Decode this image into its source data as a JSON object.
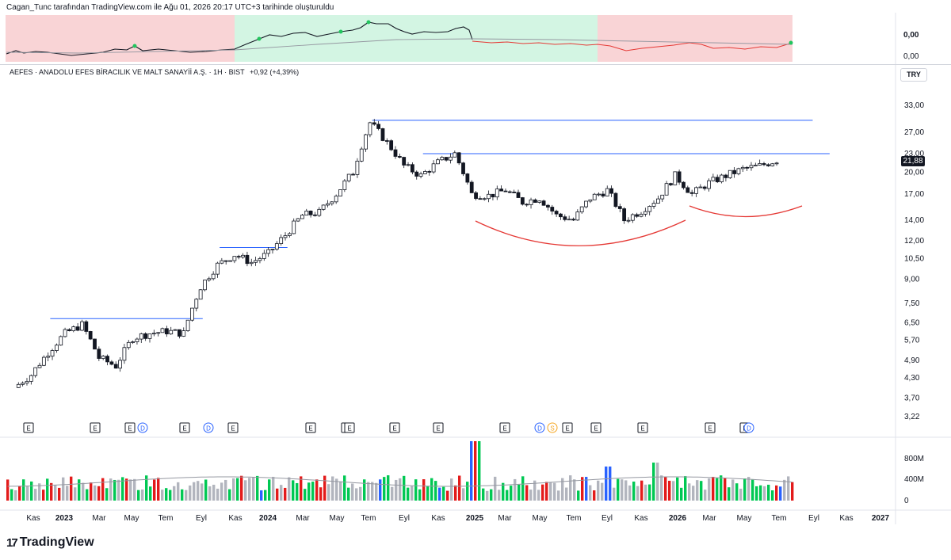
{
  "header": {
    "note": "Cagan_Tunc tarafından TradingView.com ile Ağu 01, 2026 20:17 UTC+3 tarihinde oluşturuldu"
  },
  "legend": {
    "symbol": "AEFES · ANADOLU EFES BİRACILIK VE MALT SANAYİİ A.Ş. · 1H · BIST",
    "change": "+0,92 (+4,39%)"
  },
  "currency": "TRY",
  "last_price": "21,88",
  "brand": {
    "name": "TradingView",
    "mark": "17"
  },
  "colors": {
    "up": "#22ab3f",
    "down": "#131722",
    "vol_up": "#00c853",
    "vol_down": "#e31b1b",
    "vol_blue": "#2962ff",
    "vol_grey": "#b2b5be",
    "trend": "#2962ff",
    "arc": "#e53935",
    "zone_red": "#f9d4d6",
    "zone_green": "#d3f5e3"
  },
  "top_panel": {
    "ticks": [
      "0,00",
      "0,00"
    ]
  },
  "events": [
    "E",
    "E",
    "E",
    "D",
    "E",
    "D",
    "E",
    "E",
    "E",
    "E",
    "E",
    "E",
    "E",
    "D",
    "S",
    "E",
    "E",
    "E",
    "E",
    "E",
    "D"
  ],
  "chart_data": {
    "type": "candlestick",
    "title": "AEFES · ANADOLU EFES BİRACILIK VE MALT SANAYİİ A.Ş. · 1H · BIST",
    "scale": "log",
    "y_ticks": [
      "33,00",
      "27,00",
      "23,00",
      "20,00",
      "17,00",
      "14,00",
      "12,00",
      "10,50",
      "9,00",
      "7,50",
      "6,50",
      "5,70",
      "4,90",
      "4,30",
      "3,70",
      "3,22"
    ],
    "y_tick_values": [
      33.0,
      27.0,
      23.0,
      20.0,
      17.0,
      14.0,
      12.0,
      10.5,
      9.0,
      7.5,
      6.5,
      5.7,
      4.9,
      4.3,
      3.7,
      3.22
    ],
    "x_ticks": [
      "Kas",
      "2023",
      "Mar",
      "May",
      "Tem",
      "Eyl",
      "Kas",
      "2024",
      "Mar",
      "May",
      "Tem",
      "Eyl",
      "Kas",
      "2025",
      "Mar",
      "May",
      "Tem",
      "Eyl",
      "Kas",
      "2026",
      "Mar",
      "May",
      "Tem",
      "Eyl",
      "Kas",
      "2027"
    ],
    "x_ticks_bold": [
      "2023",
      "2024",
      "2025",
      "2026",
      "2027"
    ],
    "volume_ticks": [
      "800M",
      "400M",
      "0"
    ],
    "close_path": [
      {
        "t": "2022-10",
        "c": 4.0
      },
      {
        "t": "2022-11",
        "c": 4.4
      },
      {
        "t": "2022-12",
        "c": 5.2
      },
      {
        "t": "2023-01",
        "c": 6.0
      },
      {
        "t": "2023-02",
        "c": 6.4
      },
      {
        "t": "2023-03",
        "c": 5.0
      },
      {
        "t": "2023-04",
        "c": 4.7
      },
      {
        "t": "2023-05",
        "c": 5.8
      },
      {
        "t": "2023-06",
        "c": 6.0
      },
      {
        "t": "2023-07",
        "c": 6.1
      },
      {
        "t": "2023-08",
        "c": 6.0
      },
      {
        "t": "2023-09",
        "c": 8.5
      },
      {
        "t": "2023-10",
        "c": 10.0
      },
      {
        "t": "2023-11",
        "c": 10.8
      },
      {
        "t": "2023-12",
        "c": 10.2
      },
      {
        "t": "2024-01",
        "c": 10.9
      },
      {
        "t": "2024-02",
        "c": 12.5
      },
      {
        "t": "2024-03",
        "c": 14.5
      },
      {
        "t": "2024-04",
        "c": 14.8
      },
      {
        "t": "2024-05",
        "c": 17.0
      },
      {
        "t": "2024-06",
        "c": 20.0
      },
      {
        "t": "2024-07",
        "c": 29.0
      },
      {
        "t": "2024-08",
        "c": 25.0
      },
      {
        "t": "2024-09",
        "c": 21.0
      },
      {
        "t": "2024-10",
        "c": 19.5
      },
      {
        "t": "2024-11",
        "c": 21.5
      },
      {
        "t": "2024-12",
        "c": 23.0
      },
      {
        "t": "2025-01",
        "c": 17.0
      },
      {
        "t": "2025-02",
        "c": 16.8
      },
      {
        "t": "2025-03",
        "c": 17.5
      },
      {
        "t": "2025-04",
        "c": 16.0
      },
      {
        "t": "2025-05",
        "c": 16.5
      },
      {
        "t": "2025-06",
        "c": 14.5
      },
      {
        "t": "2025-07",
        "c": 14.0
      },
      {
        "t": "2025-08",
        "c": 16.5
      },
      {
        "t": "2025-09",
        "c": 17.5
      },
      {
        "t": "2025-10",
        "c": 14.0
      },
      {
        "t": "2025-11",
        "c": 15.0
      },
      {
        "t": "2025-12",
        "c": 16.5
      },
      {
        "t": "2026-01",
        "c": 19.5
      },
      {
        "t": "2026-02",
        "c": 17.0
      },
      {
        "t": "2026-03",
        "c": 18.5
      },
      {
        "t": "2026-04",
        "c": 19.5
      },
      {
        "t": "2026-05",
        "c": 20.5
      },
      {
        "t": "2026-06",
        "c": 21.0
      },
      {
        "t": "2026-07",
        "c": 21.88
      }
    ],
    "levels": [
      {
        "price": 6.7,
        "from": "2022-12",
        "to": "2023-09"
      },
      {
        "price": 11.4,
        "from": "2023-10",
        "to": "2024-02"
      },
      {
        "price": 29.5,
        "from": "2024-07",
        "to": "2026-09"
      },
      {
        "price": 23.0,
        "from": "2024-10",
        "to": "2026-10"
      }
    ]
  }
}
